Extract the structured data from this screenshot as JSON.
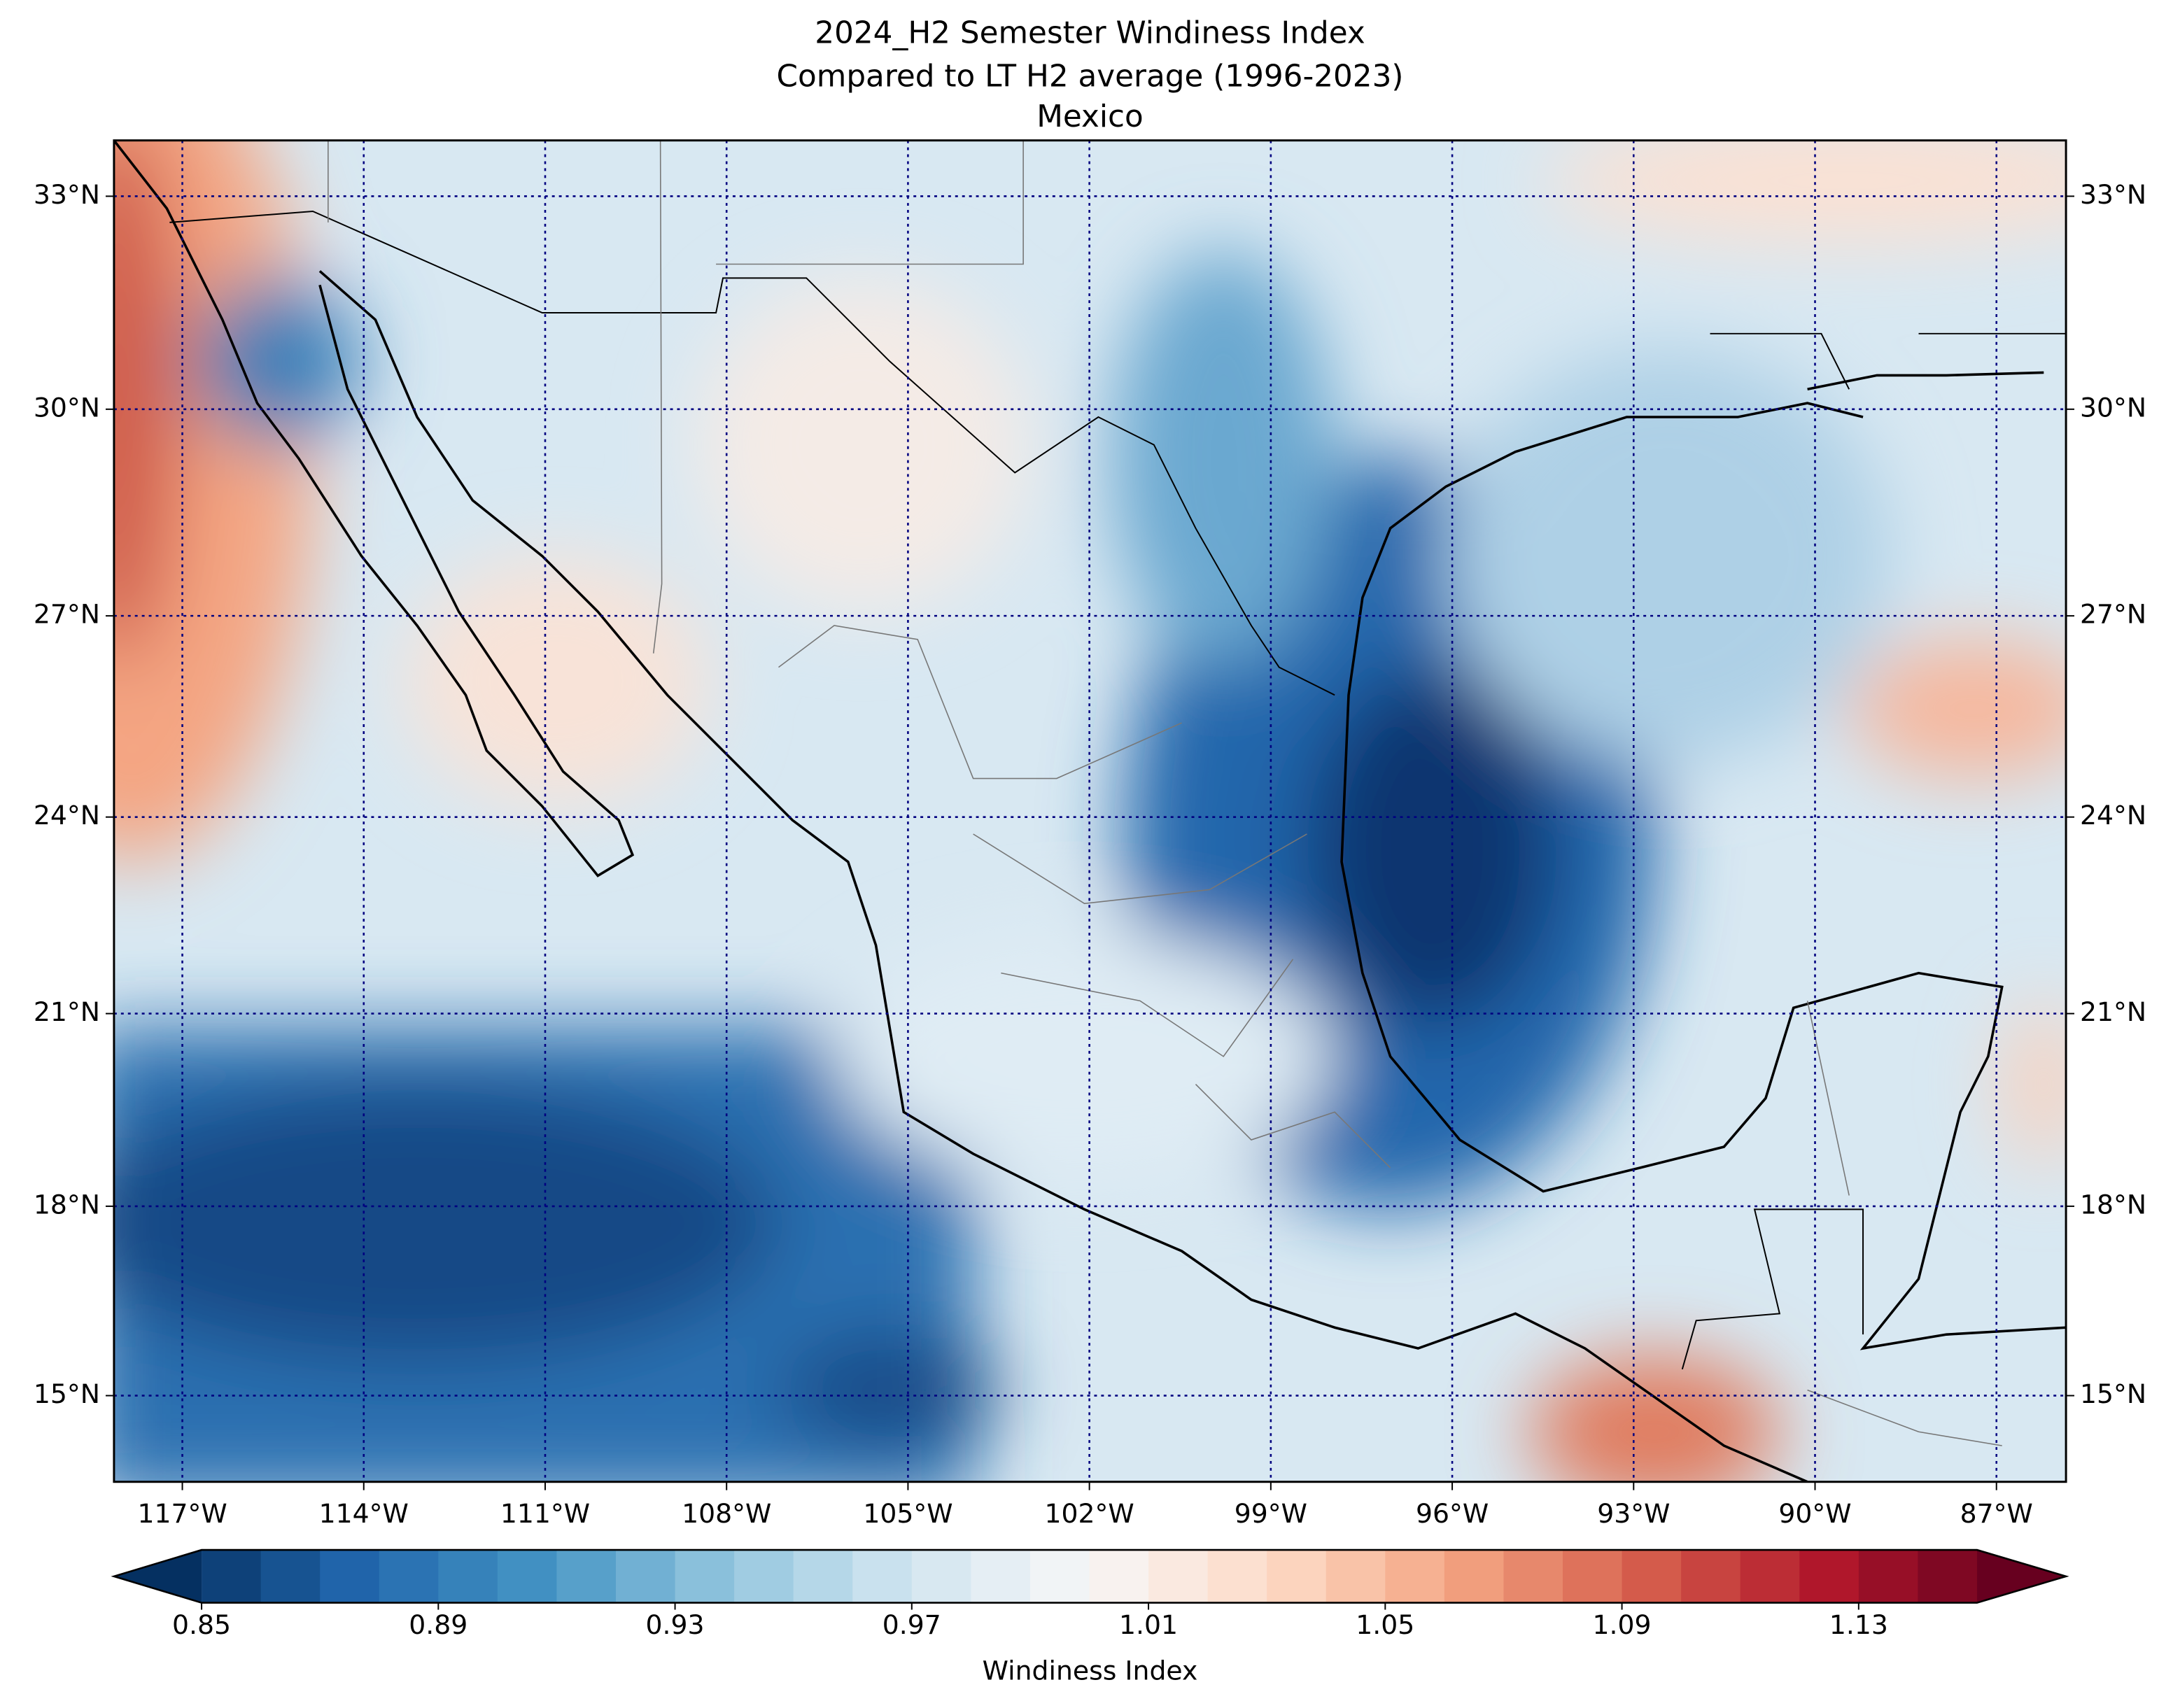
{
  "chart_data": {
    "type": "map",
    "title": [
      "2024_H2 Semester Windiness Index",
      "Compared to LT H2 average (1996-2023)",
      "Mexico"
    ],
    "xlim": [
      -118.13,
      -85.85
    ],
    "ylim": [
      13.62,
      33.77
    ],
    "xticks": [
      {
        "value": -117,
        "label": "117°W"
      },
      {
        "value": -114,
        "label": "114°W"
      },
      {
        "value": -111,
        "label": "111°W"
      },
      {
        "value": -108,
        "label": "108°W"
      },
      {
        "value": -105,
        "label": "105°W"
      },
      {
        "value": -102,
        "label": "102°W"
      },
      {
        "value": -99,
        "label": "99°W"
      },
      {
        "value": -96,
        "label": "96°W"
      },
      {
        "value": -93,
        "label": "93°W"
      },
      {
        "value": -90,
        "label": "90°W"
      },
      {
        "value": -87,
        "label": "87°W"
      }
    ],
    "yticks": [
      {
        "value": 15,
        "label": "15°N"
      },
      {
        "value": 18,
        "label": "18°N"
      },
      {
        "value": 21,
        "label": "21°N"
      },
      {
        "value": 24,
        "label": "24°N"
      },
      {
        "value": 27,
        "label": "27°N"
      },
      {
        "value": 30,
        "label": "30°N"
      },
      {
        "value": 33,
        "label": "33°N"
      }
    ],
    "grid": true,
    "grid_color": "#000080",
    "colorbar": {
      "label": "Windiness Index",
      "lim": [
        0.85,
        1.15
      ],
      "ticks": [
        0.85,
        0.89,
        0.93,
        0.97,
        1.01,
        1.05,
        1.09,
        1.13
      ],
      "segments": 30,
      "extend": "both",
      "colormap": [
        "#053061",
        "#2166ac",
        "#4393c3",
        "#92c5de",
        "#d1e5f0",
        "#f7f7f7",
        "#fddbc7",
        "#f4a582",
        "#d6604d",
        "#b2182b",
        "#67001f"
      ]
    }
  }
}
